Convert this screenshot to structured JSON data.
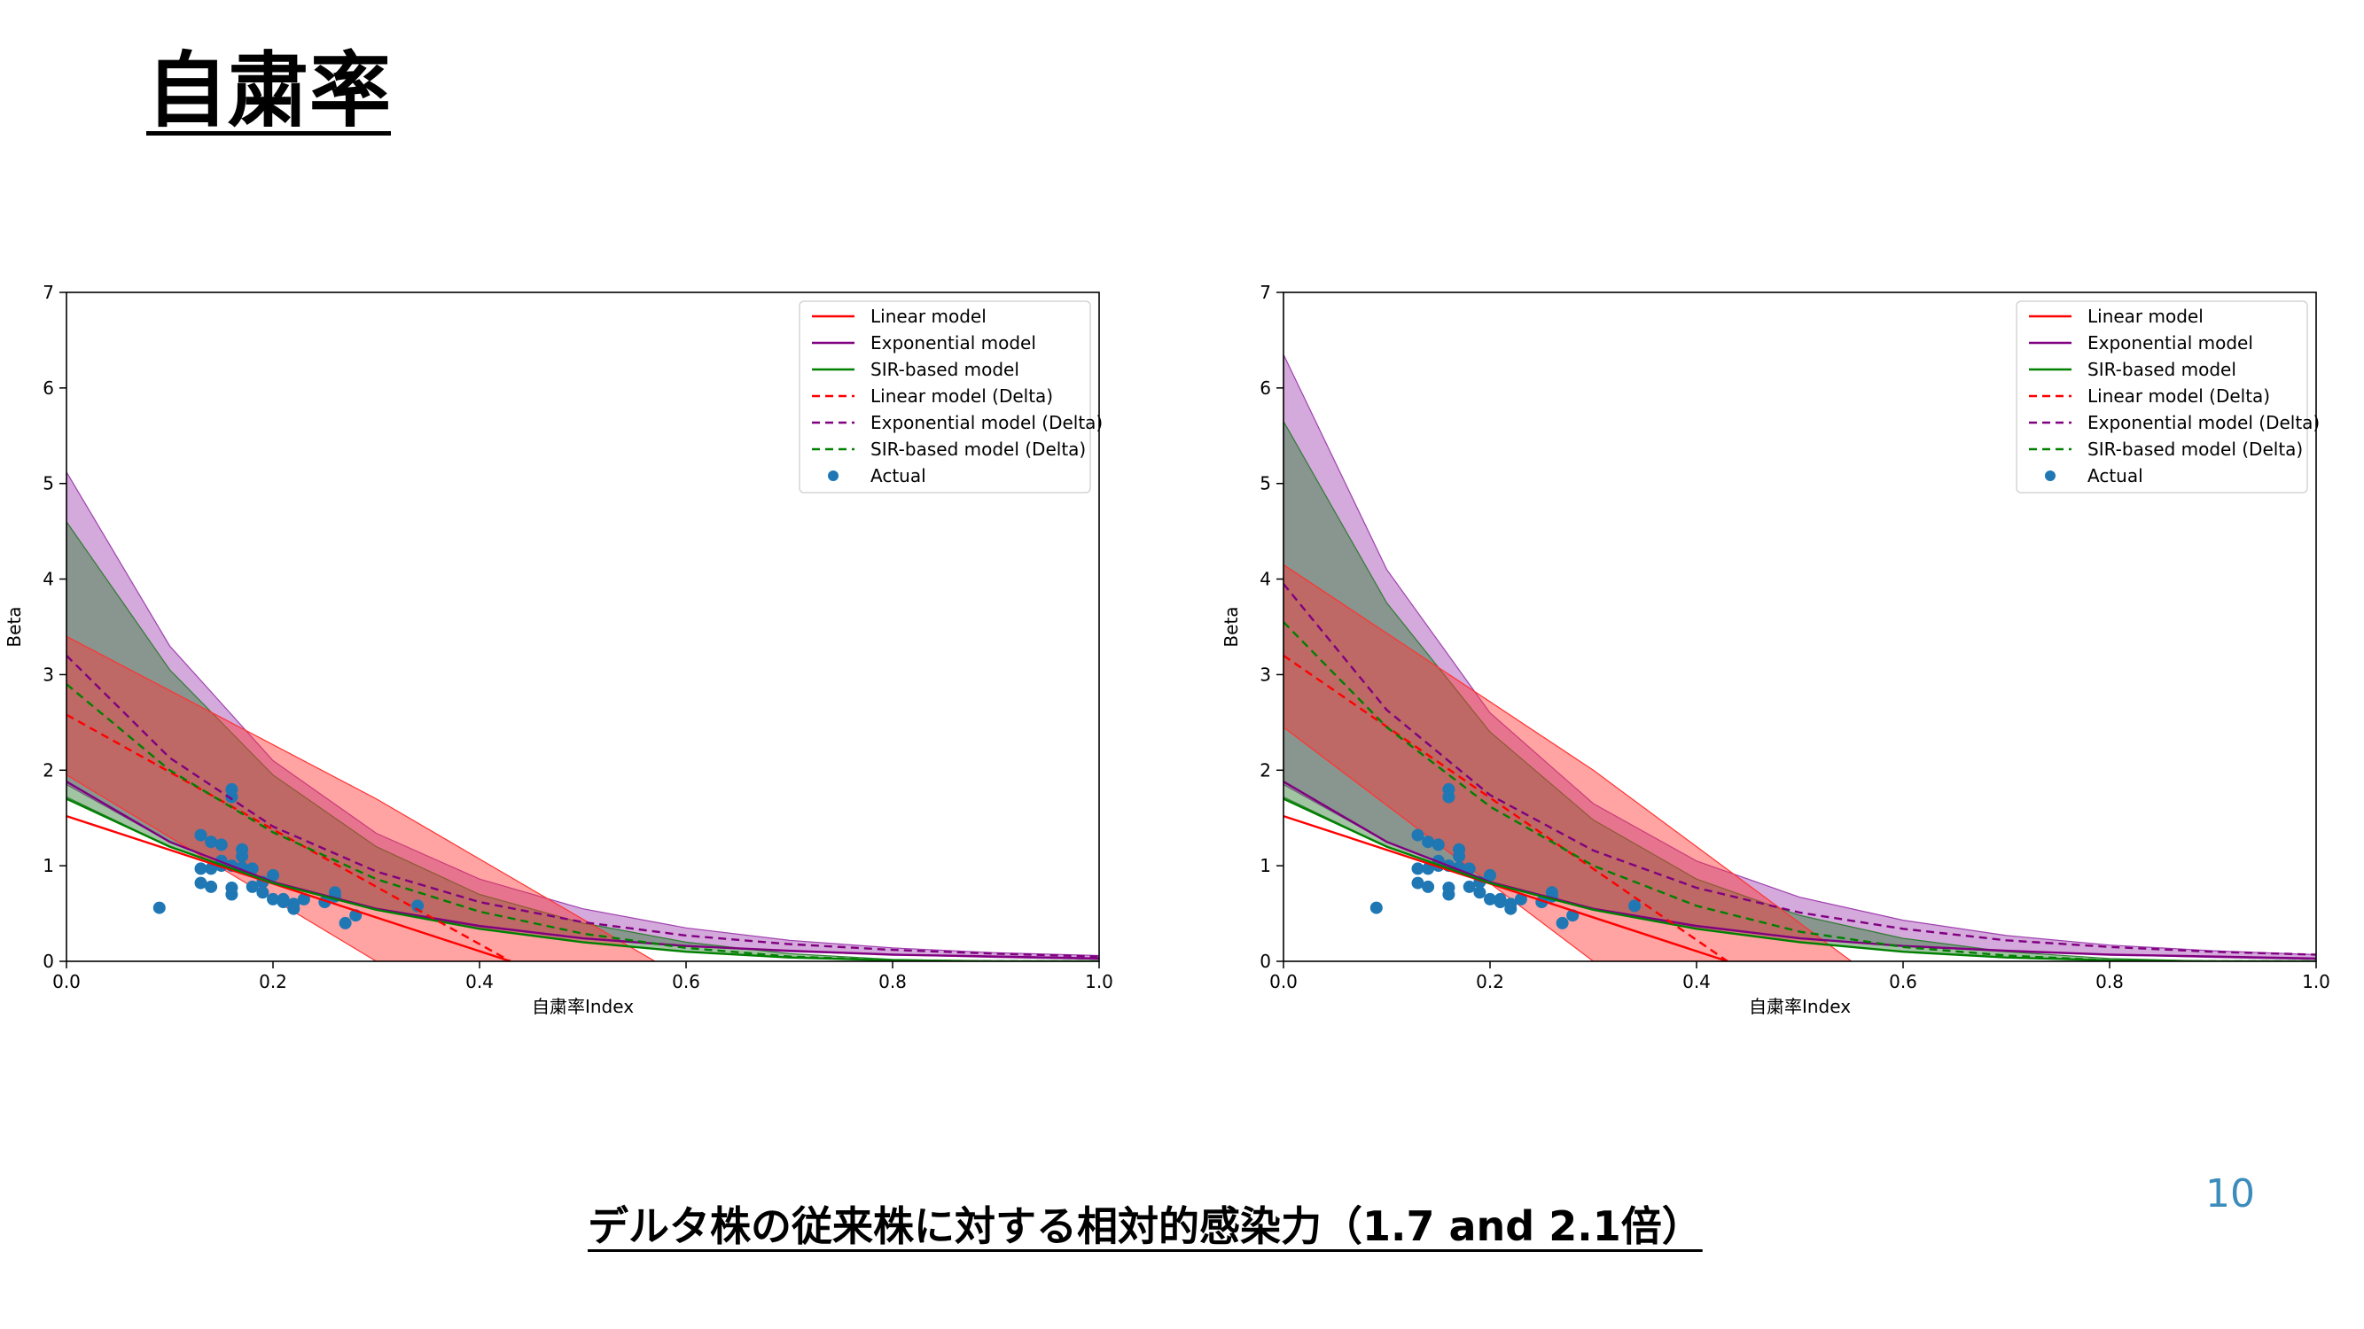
{
  "slide": {
    "title": "自粛率",
    "subtitle": "デルタ株の従来株に対する相対的感染力（1.7 and 2.1倍）",
    "page_number": "10"
  },
  "colors": {
    "linear": "#ff0000",
    "exponential": "#800080",
    "sir": "#008000",
    "actual": "#1f77b4",
    "band_linear": "#ff3333",
    "band_exponential": "#a040b0",
    "band_sir": "#2e7d32"
  },
  "chart_data": [
    {
      "type": "line",
      "xlabel": "自粛率Index",
      "ylabel": "Beta",
      "xlim": [
        0,
        1.0
      ],
      "ylim": [
        0,
        7
      ],
      "x_ticks": [
        "0.0",
        "0.2",
        "0.4",
        "0.6",
        "0.8",
        "1.0"
      ],
      "y_ticks": [
        "0",
        "1",
        "2",
        "3",
        "4",
        "5",
        "6",
        "7"
      ],
      "grid": false,
      "legend_position": "top-right",
      "legend": [
        "Linear model",
        "Exponential model",
        "SIR-based model",
        "Linear model (Delta)",
        "Exponential model (Delta)",
        "SIR-based model (Delta)",
        "Actual"
      ],
      "series": [
        {
          "name": "Linear model",
          "style": "solid",
          "color": "#ff0000",
          "x": [
            0,
            0.43
          ],
          "y": [
            1.52,
            0
          ]
        },
        {
          "name": "Exponential model",
          "style": "solid",
          "color": "#800080",
          "x": [
            0,
            0.1,
            0.2,
            0.3,
            0.4,
            0.5,
            0.6,
            0.7,
            0.8,
            0.9,
            1.0
          ],
          "y": [
            1.88,
            1.25,
            0.83,
            0.55,
            0.37,
            0.24,
            0.16,
            0.11,
            0.07,
            0.05,
            0.03
          ]
        },
        {
          "name": "SIR-based model",
          "style": "solid",
          "color": "#008000",
          "x": [
            0,
            0.1,
            0.2,
            0.3,
            0.4,
            0.5,
            0.6,
            0.7,
            0.8,
            0.9,
            1.0
          ],
          "y": [
            1.7,
            1.2,
            0.82,
            0.54,
            0.34,
            0.2,
            0.1,
            0.04,
            0.01,
            0.0,
            0.0
          ]
        },
        {
          "name": "Linear model (Delta)",
          "style": "dashed",
          "color": "#ff0000",
          "x": [
            0,
            0.43
          ],
          "y": [
            2.58,
            0
          ]
        },
        {
          "name": "Exponential model (Delta)",
          "style": "dashed",
          "color": "#800080",
          "x": [
            0,
            0.1,
            0.2,
            0.3,
            0.4,
            0.5,
            0.6,
            0.7,
            0.8,
            0.9,
            1.0
          ],
          "y": [
            3.2,
            2.13,
            1.41,
            0.94,
            0.62,
            0.41,
            0.27,
            0.18,
            0.12,
            0.08,
            0.05
          ]
        },
        {
          "name": "SIR-based model (Delta)",
          "style": "dashed",
          "color": "#008000",
          "x": [
            0,
            0.1,
            0.2,
            0.3,
            0.4,
            0.5,
            0.6,
            0.7,
            0.8,
            0.9,
            1.0
          ],
          "y": [
            2.9,
            2.0,
            1.35,
            0.86,
            0.52,
            0.29,
            0.14,
            0.05,
            0.01,
            0.0,
            0.0
          ]
        }
      ],
      "bands": [
        {
          "model": "Exponential model",
          "x": [
            0,
            0.1,
            0.2,
            0.3,
            0.4,
            0.5,
            0.6,
            0.7,
            0.8,
            0.9,
            1.0
          ],
          "upper": [
            5.12,
            3.3,
            2.1,
            1.34,
            0.86,
            0.55,
            0.35,
            0.22,
            0.14,
            0.09,
            0.06
          ],
          "lower": [
            1.85,
            1.25,
            0.83,
            0.55,
            0.36,
            0.24,
            0.16,
            0.1,
            0.07,
            0.04,
            0.02
          ]
        },
        {
          "model": "SIR-based model",
          "x": [
            0,
            0.1,
            0.2,
            0.3,
            0.4,
            0.5,
            0.6,
            0.7,
            0.8,
            0.9,
            1.0
          ],
          "upper": [
            4.6,
            3.05,
            1.95,
            1.2,
            0.7,
            0.4,
            0.2,
            0.08,
            0.02,
            0.0,
            0.0
          ],
          "lower": [
            1.72,
            1.2,
            0.82,
            0.54,
            0.34,
            0.2,
            0.1,
            0.04,
            0.01,
            0.0,
            0.0
          ]
        },
        {
          "model": "Linear model",
          "x": [
            0,
            0.3,
            0.57
          ],
          "upper": [
            3.4,
            1.7,
            0
          ],
          "lower": [
            1.95,
            0,
            0
          ]
        }
      ],
      "scatter": {
        "name": "Actual",
        "x": [
          0.09,
          0.13,
          0.13,
          0.13,
          0.14,
          0.14,
          0.14,
          0.15,
          0.15,
          0.15,
          0.16,
          0.16,
          0.16,
          0.16,
          0.16,
          0.17,
          0.17,
          0.17,
          0.18,
          0.18,
          0.19,
          0.19,
          0.2,
          0.2,
          0.21,
          0.21,
          0.22,
          0.22,
          0.23,
          0.25,
          0.26,
          0.26,
          0.27,
          0.28,
          0.34
        ],
        "y": [
          0.56,
          0.97,
          1.32,
          0.82,
          0.97,
          0.78,
          1.25,
          1.0,
          1.22,
          1.05,
          1.72,
          1.8,
          0.7,
          0.77,
          1.0,
          1.1,
          1.17,
          0.98,
          0.78,
          0.97,
          0.83,
          0.72,
          0.9,
          0.65,
          0.62,
          0.65,
          0.55,
          0.6,
          0.65,
          0.62,
          0.68,
          0.72,
          0.4,
          0.48,
          0.58
        ]
      }
    },
    {
      "type": "line",
      "xlabel": "自粛率Index",
      "ylabel": "Beta",
      "xlim": [
        0,
        1.0
      ],
      "ylim": [
        0,
        7
      ],
      "x_ticks": [
        "0.0",
        "0.2",
        "0.4",
        "0.6",
        "0.8",
        "1.0"
      ],
      "y_ticks": [
        "0",
        "1",
        "2",
        "3",
        "4",
        "5",
        "6",
        "7"
      ],
      "grid": false,
      "legend_position": "top-right",
      "legend": [
        "Linear model",
        "Exponential model",
        "SIR-based model",
        "Linear model (Delta)",
        "Exponential model (Delta)",
        "SIR-based model (Delta)",
        "Actual"
      ],
      "series": [
        {
          "name": "Linear model",
          "style": "solid",
          "color": "#ff0000",
          "x": [
            0,
            0.43
          ],
          "y": [
            1.52,
            0
          ]
        },
        {
          "name": "Exponential model",
          "style": "solid",
          "color": "#800080",
          "x": [
            0,
            0.1,
            0.2,
            0.3,
            0.4,
            0.5,
            0.6,
            0.7,
            0.8,
            0.9,
            1.0
          ],
          "y": [
            1.88,
            1.25,
            0.83,
            0.55,
            0.37,
            0.24,
            0.16,
            0.11,
            0.07,
            0.05,
            0.03
          ]
        },
        {
          "name": "SIR-based model",
          "style": "solid",
          "color": "#008000",
          "x": [
            0,
            0.1,
            0.2,
            0.3,
            0.4,
            0.5,
            0.6,
            0.7,
            0.8,
            0.9,
            1.0
          ],
          "y": [
            1.7,
            1.2,
            0.82,
            0.54,
            0.34,
            0.2,
            0.1,
            0.04,
            0.01,
            0.0,
            0.0
          ]
        },
        {
          "name": "Linear model (Delta)",
          "style": "dashed",
          "color": "#ff0000",
          "x": [
            0,
            0.43
          ],
          "y": [
            3.2,
            0
          ]
        },
        {
          "name": "Exponential model (Delta)",
          "style": "dashed",
          "color": "#800080",
          "x": [
            0,
            0.1,
            0.2,
            0.3,
            0.4,
            0.5,
            0.6,
            0.7,
            0.8,
            0.9,
            1.0
          ],
          "y": [
            3.95,
            2.63,
            1.74,
            1.16,
            0.77,
            0.51,
            0.34,
            0.22,
            0.15,
            0.1,
            0.07
          ]
        },
        {
          "name": "SIR-based model (Delta)",
          "style": "dashed",
          "color": "#008000",
          "x": [
            0,
            0.1,
            0.2,
            0.3,
            0.4,
            0.5,
            0.6,
            0.7,
            0.8,
            0.9,
            1.0
          ],
          "y": [
            3.55,
            2.45,
            1.62,
            1.0,
            0.58,
            0.31,
            0.15,
            0.06,
            0.01,
            0.0,
            0.0
          ]
        }
      ],
      "bands": [
        {
          "model": "Exponential model",
          "x": [
            0,
            0.1,
            0.2,
            0.3,
            0.4,
            0.5,
            0.6,
            0.7,
            0.8,
            0.9,
            1.0
          ],
          "upper": [
            6.35,
            4.1,
            2.6,
            1.65,
            1.05,
            0.67,
            0.43,
            0.27,
            0.17,
            0.11,
            0.07
          ],
          "lower": [
            1.85,
            1.25,
            0.83,
            0.55,
            0.36,
            0.24,
            0.16,
            0.1,
            0.07,
            0.04,
            0.02
          ]
        },
        {
          "model": "SIR-based model",
          "x": [
            0,
            0.1,
            0.2,
            0.3,
            0.4,
            0.5,
            0.6,
            0.7,
            0.8,
            0.9,
            1.0
          ],
          "upper": [
            5.65,
            3.75,
            2.4,
            1.48,
            0.86,
            0.48,
            0.24,
            0.1,
            0.03,
            0.0,
            0.0
          ],
          "lower": [
            1.72,
            1.2,
            0.82,
            0.54,
            0.34,
            0.2,
            0.1,
            0.04,
            0.01,
            0.0,
            0.0
          ]
        },
        {
          "model": "Linear model",
          "x": [
            0,
            0.3,
            0.55
          ],
          "upper": [
            4.15,
            2.0,
            0
          ],
          "lower": [
            2.45,
            0,
            0
          ]
        }
      ],
      "scatter": {
        "name": "Actual",
        "x": [
          0.09,
          0.13,
          0.13,
          0.13,
          0.14,
          0.14,
          0.14,
          0.15,
          0.15,
          0.15,
          0.16,
          0.16,
          0.16,
          0.16,
          0.16,
          0.17,
          0.17,
          0.17,
          0.18,
          0.18,
          0.19,
          0.19,
          0.2,
          0.2,
          0.21,
          0.21,
          0.22,
          0.22,
          0.23,
          0.25,
          0.26,
          0.26,
          0.27,
          0.28,
          0.34
        ],
        "y": [
          0.56,
          0.97,
          1.32,
          0.82,
          0.97,
          0.78,
          1.25,
          1.0,
          1.22,
          1.05,
          1.72,
          1.8,
          0.7,
          0.77,
          1.0,
          1.1,
          1.17,
          0.98,
          0.78,
          0.97,
          0.83,
          0.72,
          0.9,
          0.65,
          0.62,
          0.65,
          0.55,
          0.6,
          0.65,
          0.62,
          0.68,
          0.72,
          0.4,
          0.48,
          0.58
        ]
      }
    }
  ]
}
